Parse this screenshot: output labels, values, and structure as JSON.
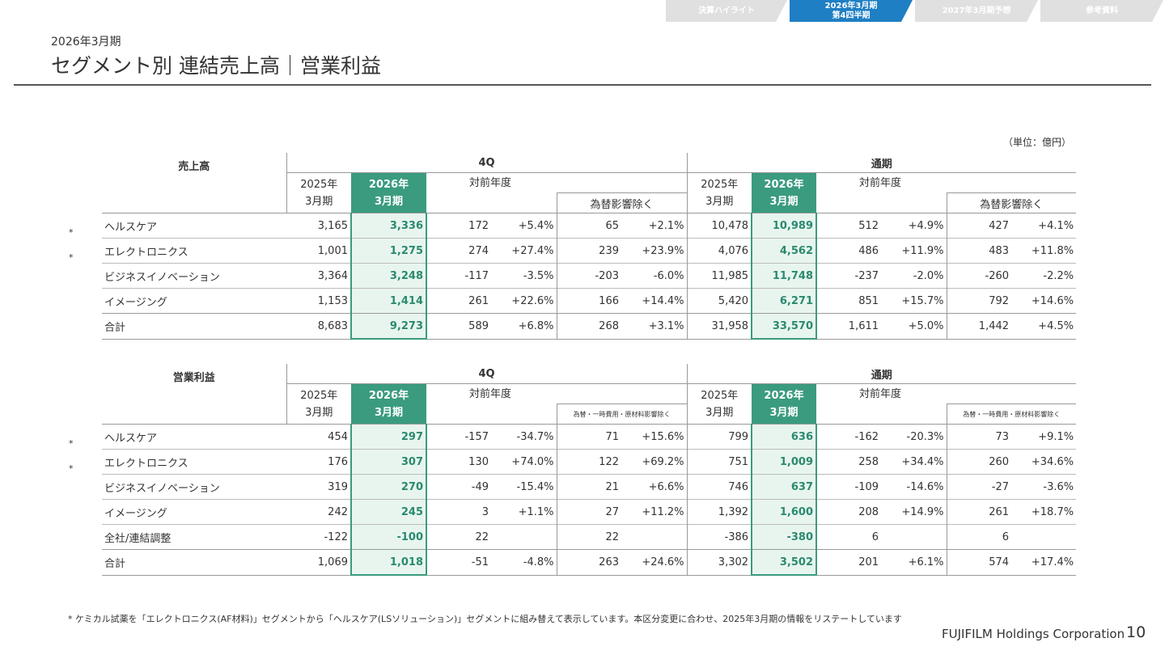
{
  "nav_tabs": [
    {
      "label": "決算ハイライト",
      "active": false
    },
    {
      "label_line1": "2026年3月期",
      "label_line2": "第4四半期",
      "active": true
    },
    {
      "label": "2027年3月期予想",
      "active": false
    },
    {
      "label": "参考資料",
      "active": false
    }
  ],
  "colors": {
    "accent_green": "#3a9b7f",
    "tab_active": "#1f7fc4",
    "tab_inactive": "#e0e0e0"
  },
  "header": {
    "period": "2026年3月期",
    "title": "セグメント別 連結売上高｜営業利益"
  },
  "unit_label": "（単位：億円）",
  "columns": {
    "group_4q": "4Q",
    "group_full": "通期",
    "prev_year": [
      "2025年",
      "3月期"
    ],
    "cur_year": [
      "2026年",
      "3月期"
    ],
    "yoy": "対前年度"
  },
  "sales": {
    "section_label": "売上高",
    "fx_label": "為替影響除く",
    "rows": [
      {
        "name": "ヘルスケア",
        "asterisk": "*",
        "q_prev": "3,165",
        "q_cur": "3,336",
        "q_diff": "172",
        "q_pct": "+5.4%",
        "q_fx": "65",
        "q_fx_pct": "+2.1%",
        "f_prev": "10,478",
        "f_cur": "10,989",
        "f_diff": "512",
        "f_pct": "+4.9%",
        "f_fx": "427",
        "f_fx_pct": "+4.1%"
      },
      {
        "name": "エレクトロニクス",
        "asterisk": "*",
        "q_prev": "1,001",
        "q_cur": "1,275",
        "q_diff": "274",
        "q_pct": "+27.4%",
        "q_fx": "239",
        "q_fx_pct": "+23.9%",
        "f_prev": "4,076",
        "f_cur": "4,562",
        "f_diff": "486",
        "f_pct": "+11.9%",
        "f_fx": "483",
        "f_fx_pct": "+11.8%"
      },
      {
        "name": "ビジネスイノベーション",
        "asterisk": "",
        "q_prev": "3,364",
        "q_cur": "3,248",
        "q_diff": "-117",
        "q_pct": "-3.5%",
        "q_fx": "-203",
        "q_fx_pct": "-6.0%",
        "f_prev": "11,985",
        "f_cur": "11,748",
        "f_diff": "-237",
        "f_pct": "-2.0%",
        "f_fx": "-260",
        "f_fx_pct": "-2.2%"
      },
      {
        "name": "イメージング",
        "asterisk": "",
        "q_prev": "1,153",
        "q_cur": "1,414",
        "q_diff": "261",
        "q_pct": "+22.6%",
        "q_fx": "166",
        "q_fx_pct": "+14.4%",
        "f_prev": "5,420",
        "f_cur": "6,271",
        "f_diff": "851",
        "f_pct": "+15.7%",
        "f_fx": "792",
        "f_fx_pct": "+14.6%"
      },
      {
        "name": "合計",
        "asterisk": "",
        "q_prev": "8,683",
        "q_cur": "9,273",
        "q_diff": "589",
        "q_pct": "+6.8%",
        "q_fx": "268",
        "q_fx_pct": "+3.1%",
        "f_prev": "31,958",
        "f_cur": "33,570",
        "f_diff": "1,611",
        "f_pct": "+5.0%",
        "f_fx": "1,442",
        "f_fx_pct": "+4.5%"
      }
    ]
  },
  "op": {
    "section_label": "営業利益",
    "fx_label": "為替・一時費用・原材料影響除く",
    "rows": [
      {
        "name": "ヘルスケア",
        "asterisk": "*",
        "q_prev": "454",
        "q_cur": "297",
        "q_diff": "-157",
        "q_pct": "-34.7%",
        "q_fx": "71",
        "q_fx_pct": "+15.6%",
        "f_prev": "799",
        "f_cur": "636",
        "f_diff": "-162",
        "f_pct": "-20.3%",
        "f_fx": "73",
        "f_fx_pct": "+9.1%"
      },
      {
        "name": "エレクトロニクス",
        "asterisk": "*",
        "q_prev": "176",
        "q_cur": "307",
        "q_diff": "130",
        "q_pct": "+74.0%",
        "q_fx": "122",
        "q_fx_pct": "+69.2%",
        "f_prev": "751",
        "f_cur": "1,009",
        "f_diff": "258",
        "f_pct": "+34.4%",
        "f_fx": "260",
        "f_fx_pct": "+34.6%"
      },
      {
        "name": "ビジネスイノベーション",
        "asterisk": "",
        "q_prev": "319",
        "q_cur": "270",
        "q_diff": "-49",
        "q_pct": "-15.4%",
        "q_fx": "21",
        "q_fx_pct": "+6.6%",
        "f_prev": "746",
        "f_cur": "637",
        "f_diff": "-109",
        "f_pct": "-14.6%",
        "f_fx": "-27",
        "f_fx_pct": "-3.6%"
      },
      {
        "name": "イメージング",
        "asterisk": "",
        "q_prev": "242",
        "q_cur": "245",
        "q_diff": "3",
        "q_pct": "+1.1%",
        "q_fx": "27",
        "q_fx_pct": "+11.2%",
        "f_prev": "1,392",
        "f_cur": "1,600",
        "f_diff": "208",
        "f_pct": "+14.9%",
        "f_fx": "261",
        "f_fx_pct": "+18.7%"
      },
      {
        "name": "全社/連結調整",
        "asterisk": "",
        "q_prev": "-122",
        "q_cur": "-100",
        "q_diff": "22",
        "q_pct": "",
        "q_fx": "22",
        "q_fx_pct": "",
        "f_prev": "-386",
        "f_cur": "-380",
        "f_diff": "6",
        "f_pct": "",
        "f_fx": "6",
        "f_fx_pct": ""
      },
      {
        "name": "合計",
        "asterisk": "",
        "q_prev": "1,069",
        "q_cur": "1,018",
        "q_diff": "-51",
        "q_pct": "-4.8%",
        "q_fx": "263",
        "q_fx_pct": "+24.6%",
        "f_prev": "3,302",
        "f_cur": "3,502",
        "f_diff": "201",
        "f_pct": "+6.1%",
        "f_fx": "574",
        "f_fx_pct": "+17.4%"
      }
    ]
  },
  "footnote": "* ケミカル試薬を「エレクトロニクス(AF材料)」セグメントから「ヘルスケア(LSソリューション)」セグメントに組み替えて表示しています。本区分変更に合わせ、2025年3月期の情報をリステートしています",
  "footer": {
    "company": "FUJIFILM Holdings Corporation",
    "page": "10"
  }
}
